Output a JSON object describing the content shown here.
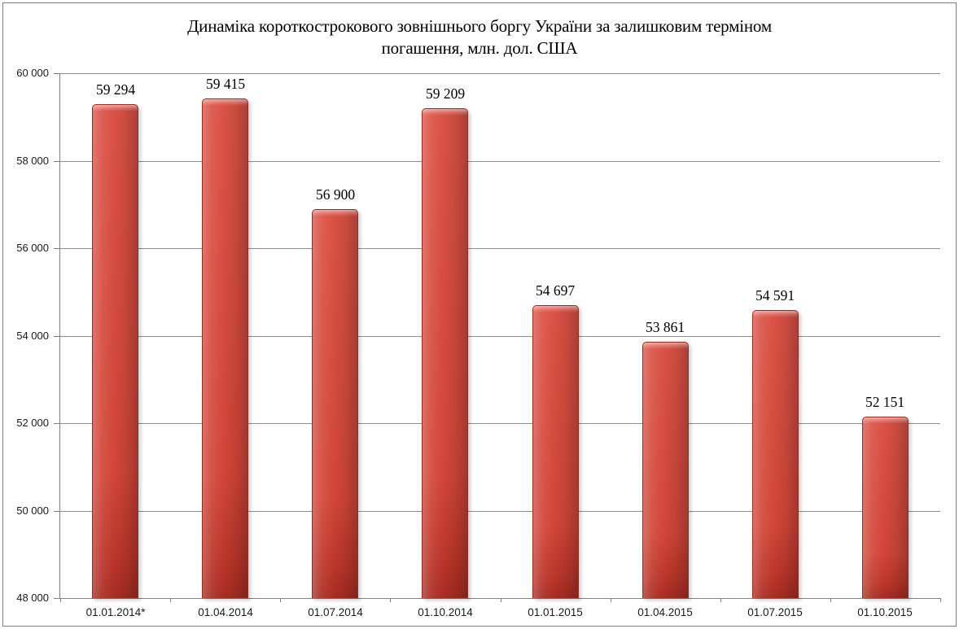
{
  "title": {
    "line1": "Динаміка короткострокового зовнішнього боргу України за залишковим терміном",
    "line2": "погашення, млн. дол. США"
  },
  "chart_data": {
    "type": "bar",
    "title": "Динаміка короткострокового зовнішнього боргу України за залишковим терміном погашення, млн. дол. США",
    "categories": [
      "01.01.2014*",
      "01.04.2014",
      "01.07.2014",
      "01.10.2014",
      "01.01.2015",
      "01.04.2015",
      "01.07.2015",
      "01.10.2015"
    ],
    "values": [
      59294,
      59415,
      56900,
      59209,
      54697,
      53861,
      54591,
      52151
    ],
    "data_labels": [
      "59 294",
      "59 415",
      "56 900",
      "59 209",
      "54 697",
      "53 861",
      "54 591",
      "52 151"
    ],
    "ylim": [
      48000,
      60000
    ],
    "ytick_step": 2000,
    "ytick_labels": [
      "48 000",
      "50 000",
      "52 000",
      "54 000",
      "56 000",
      "58 000",
      "60 000"
    ],
    "xlabel": "",
    "ylabel": "",
    "grid": true,
    "legend": "none",
    "bar_color": "#cf4437",
    "bar_border_color": "#9b2a21",
    "axis_color": "#808080",
    "gridline_color": "#8f8f8f",
    "label_color": "#000000"
  }
}
